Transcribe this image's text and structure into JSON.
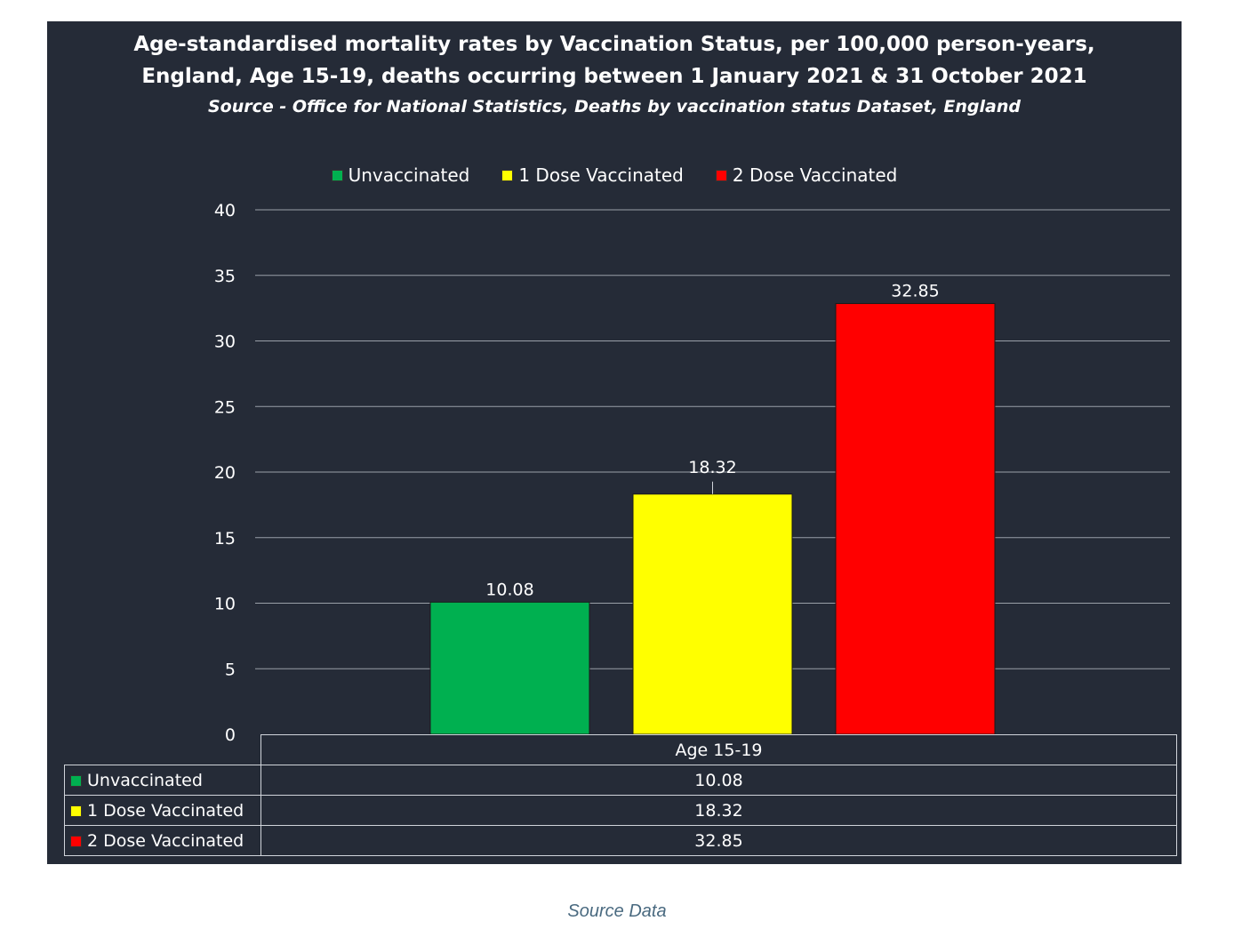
{
  "chart_data": {
    "type": "bar",
    "title_lines": [
      "Age-standardised mortality rates by Vaccination Status, per 100,000 person-years,",
      "England, Age 15-19, deaths occurring between 1 January 2021 & 31 October 2021"
    ],
    "subtitle": "Source - Office for National Statistics, Deaths by vaccination status Dataset, England",
    "categories": [
      "Age 15-19"
    ],
    "series": [
      {
        "name": "Unvaccinated",
        "values": [
          10.08
        ],
        "color": "#00b050"
      },
      {
        "name": "1 Dose Vaccinated",
        "values": [
          18.32
        ],
        "color": "#ffff00"
      },
      {
        "name": "2 Dose Vaccinated",
        "values": [
          32.85
        ],
        "color": "#ff0000"
      }
    ],
    "ylim": [
      0,
      40
    ],
    "yticks": [
      0,
      5,
      10,
      15,
      20,
      25,
      30,
      35,
      40
    ],
    "grid": true,
    "legend_position": "top",
    "data_table": true
  },
  "caption": "Source Data"
}
